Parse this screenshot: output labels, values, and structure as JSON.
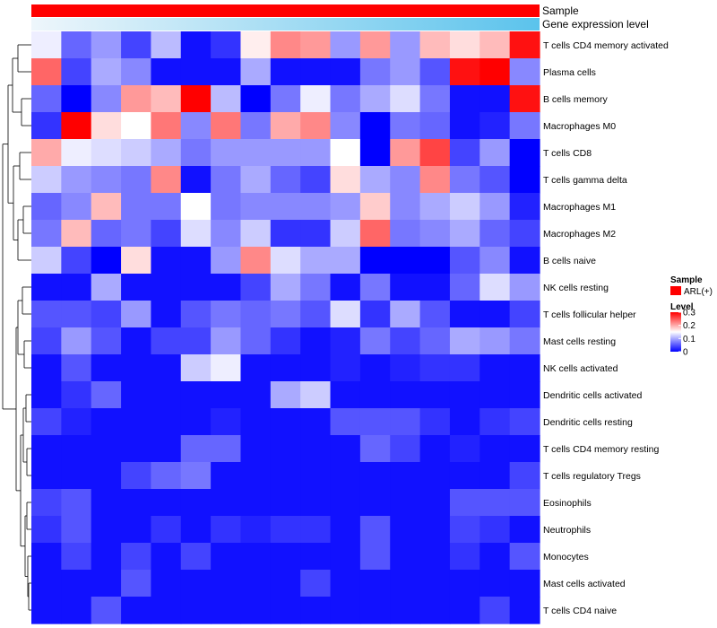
{
  "chart_data": {
    "type": "heatmap",
    "annotation_tracks": [
      "Sample",
      "Gene expression level"
    ],
    "sample_track_color": "#ff0000",
    "expression_gradient": [
      "#eef6fb",
      "#5bc3ec"
    ],
    "rows": [
      "T cells CD4 memory activated",
      "Plasma cells",
      "B cells memory",
      "Macrophages M0",
      "T cells CD8",
      "T cells gamma delta",
      "Macrophages M1",
      "Macrophages M2",
      "B cells naive",
      "NK cells resting",
      "T cells follicular helper",
      "Mast cells resting",
      "NK cells activated",
      "Dendritic cells activated",
      "Dendritic cells resting",
      "T cells CD4 memory resting",
      "T cells regulatory  Tregs",
      "Eosinophils",
      "Neutrophils",
      "Monocytes",
      "Mast cells activated",
      "T cells CD4 naive"
    ],
    "n_columns": 17,
    "values": [
      [
        0.14,
        0.06,
        0.09,
        0.04,
        0.11,
        0.01,
        0.03,
        0.16,
        0.22,
        0.21,
        0.09,
        0.21,
        0.09,
        0.19,
        0.17,
        0.19,
        0.29
      ],
      [
        0.24,
        0.04,
        0.1,
        0.08,
        0.01,
        0.01,
        0.01,
        0.1,
        0.01,
        0.01,
        0.01,
        0.07,
        0.09,
        0.05,
        0.29,
        0.3,
        0.08
      ],
      [
        0.06,
        0.0,
        0.08,
        0.21,
        0.19,
        0.3,
        0.11,
        0.0,
        0.07,
        0.14,
        0.07,
        0.1,
        0.13,
        0.07,
        0.01,
        0.01,
        0.29
      ],
      [
        0.03,
        0.3,
        0.17,
        0.15,
        0.23,
        0.08,
        0.23,
        0.07,
        0.2,
        0.22,
        0.08,
        0.0,
        0.07,
        0.06,
        0.01,
        0.02,
        0.07
      ],
      [
        0.2,
        0.14,
        0.13,
        0.12,
        0.1,
        0.07,
        0.09,
        0.09,
        0.09,
        0.09,
        0.15,
        0.0,
        0.21,
        0.26,
        0.04,
        0.09,
        0.0
      ],
      [
        0.12,
        0.09,
        0.08,
        0.07,
        0.22,
        0.01,
        0.07,
        0.1,
        0.06,
        0.04,
        0.17,
        0.1,
        0.08,
        0.22,
        0.07,
        0.05,
        0.0
      ],
      [
        0.06,
        0.08,
        0.19,
        0.07,
        0.07,
        0.15,
        0.07,
        0.08,
        0.08,
        0.08,
        0.09,
        0.18,
        0.08,
        0.1,
        0.12,
        0.09,
        0.02
      ],
      [
        0.07,
        0.19,
        0.06,
        0.07,
        0.04,
        0.13,
        0.08,
        0.12,
        0.03,
        0.03,
        0.12,
        0.24,
        0.07,
        0.08,
        0.1,
        0.06,
        0.04
      ],
      [
        0.12,
        0.04,
        0.0,
        0.17,
        0.01,
        0.01,
        0.09,
        0.22,
        0.13,
        0.1,
        0.1,
        0.0,
        0.0,
        0.0,
        0.05,
        0.08,
        0.01
      ],
      [
        0.01,
        0.01,
        0.1,
        0.01,
        0.01,
        0.01,
        0.01,
        0.04,
        0.1,
        0.07,
        0.01,
        0.07,
        0.01,
        0.01,
        0.06,
        0.13,
        0.09
      ],
      [
        0.05,
        0.05,
        0.04,
        0.09,
        0.01,
        0.05,
        0.07,
        0.06,
        0.07,
        0.05,
        0.13,
        0.03,
        0.1,
        0.05,
        0.01,
        0.01,
        0.04
      ],
      [
        0.04,
        0.09,
        0.05,
        0.01,
        0.04,
        0.04,
        0.09,
        0.06,
        0.03,
        0.01,
        0.02,
        0.07,
        0.04,
        0.06,
        0.1,
        0.09,
        0.07
      ],
      [
        0.01,
        0.05,
        0.01,
        0.01,
        0.01,
        0.12,
        0.14,
        0.01,
        0.01,
        0.01,
        0.02,
        0.01,
        0.02,
        0.03,
        0.03,
        0.01,
        0.01
      ],
      [
        0.01,
        0.03,
        0.06,
        0.01,
        0.01,
        0.01,
        0.01,
        0.01,
        0.1,
        0.12,
        0.01,
        0.01,
        0.01,
        0.01,
        0.01,
        0.01,
        0.01
      ],
      [
        0.04,
        0.02,
        0.01,
        0.01,
        0.01,
        0.01,
        0.02,
        0.01,
        0.01,
        0.01,
        0.05,
        0.05,
        0.05,
        0.03,
        0.01,
        0.03,
        0.04
      ],
      [
        0.01,
        0.01,
        0.01,
        0.01,
        0.01,
        0.06,
        0.06,
        0.01,
        0.01,
        0.01,
        0.01,
        0.06,
        0.04,
        0.01,
        0.02,
        0.01,
        0.01
      ],
      [
        0.01,
        0.01,
        0.01,
        0.04,
        0.06,
        0.07,
        0.01,
        0.01,
        0.01,
        0.01,
        0.01,
        0.01,
        0.01,
        0.01,
        0.01,
        0.01,
        0.04
      ],
      [
        0.04,
        0.05,
        0.01,
        0.01,
        0.01,
        0.01,
        0.01,
        0.01,
        0.01,
        0.01,
        0.01,
        0.01,
        0.01,
        0.01,
        0.05,
        0.05,
        0.05
      ],
      [
        0.03,
        0.05,
        0.01,
        0.01,
        0.03,
        0.01,
        0.03,
        0.02,
        0.03,
        0.03,
        0.01,
        0.05,
        0.01,
        0.01,
        0.04,
        0.03,
        0.01
      ],
      [
        0.01,
        0.04,
        0.01,
        0.04,
        0.01,
        0.04,
        0.01,
        0.01,
        0.01,
        0.01,
        0.01,
        0.05,
        0.01,
        0.01,
        0.03,
        0.01,
        0.05
      ],
      [
        0.01,
        0.01,
        0.01,
        0.05,
        0.01,
        0.01,
        0.01,
        0.01,
        0.01,
        0.04,
        0.01,
        0.01,
        0.01,
        0.01,
        0.01,
        0.01,
        0.01
      ],
      [
        0.01,
        0.01,
        0.05,
        0.01,
        0.01,
        0.01,
        0.01,
        0.01,
        0.01,
        0.01,
        0.01,
        0.01,
        0.01,
        0.01,
        0.01,
        0.04,
        0.01
      ]
    ],
    "legend": {
      "sample_title": "Sample",
      "sample_entry": "ARL(+)",
      "level_title": "Level",
      "level_ticks": [
        0,
        0.1,
        0.2,
        0.3
      ],
      "level_tick_labels": [
        "0",
        "0.1",
        "0.2",
        "0.3"
      ],
      "color_low": "#0000ff",
      "color_mid": "#ffffff",
      "color_high": "#ff0000",
      "range": [
        0,
        0.3
      ]
    }
  }
}
